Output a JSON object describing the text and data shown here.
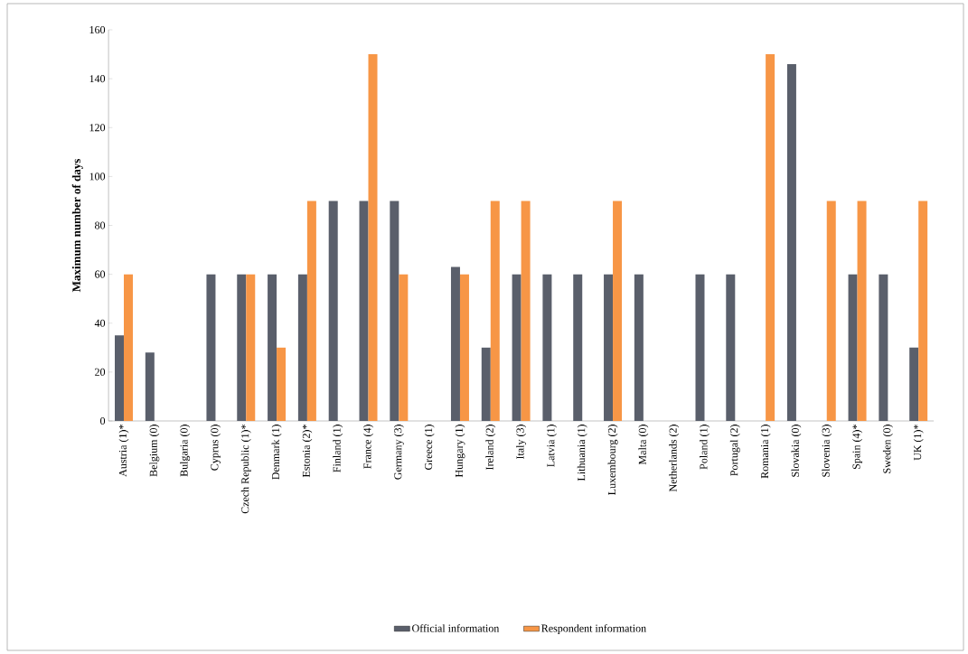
{
  "chart_data": {
    "type": "bar",
    "ylabel": "Maximum number of days",
    "categories": [
      "Austria (1)*",
      "Belgium (0)",
      "Bulgaria (0)",
      "Cyprus (0)",
      "Czech Republic (1)*",
      "Denmark (1)",
      "Estonia (2)*",
      "Finland (1)",
      "France (4)",
      "Germany (3)",
      "Greece (1)",
      "Hungary (1)",
      "Ireland (2)",
      "Italy (3)",
      "Latvia (1)",
      "Lithuania (1)",
      "Luxembourg (2)",
      "Malta (0)",
      "Netherlands (2)",
      "Poland (1)",
      "Portugal (2)",
      "Romania (1)",
      "Slovakia (0)",
      "Slovenia (3)",
      "Spain (4)*",
      "Sweden (0)",
      "UK (1)*"
    ],
    "series": [
      {
        "name": "Official information",
        "color": "#5a5f6b",
        "values": [
          35,
          28,
          null,
          60,
          60,
          60,
          60,
          90,
          90,
          90,
          null,
          63,
          30,
          60,
          60,
          60,
          60,
          60,
          null,
          60,
          60,
          null,
          146,
          null,
          60,
          60,
          30
        ]
      },
      {
        "name": "Respondent information",
        "color": "#f79646",
        "values": [
          60,
          null,
          null,
          null,
          60,
          30,
          90,
          null,
          150,
          60,
          null,
          60,
          90,
          90,
          null,
          null,
          90,
          null,
          null,
          null,
          null,
          150,
          null,
          90,
          90,
          null,
          90
        ]
      }
    ],
    "ylim": [
      0,
      160
    ],
    "yticks": [
      0,
      20,
      40,
      60,
      80,
      100,
      120,
      140,
      160
    ],
    "grid": false,
    "legend": "bottom"
  }
}
